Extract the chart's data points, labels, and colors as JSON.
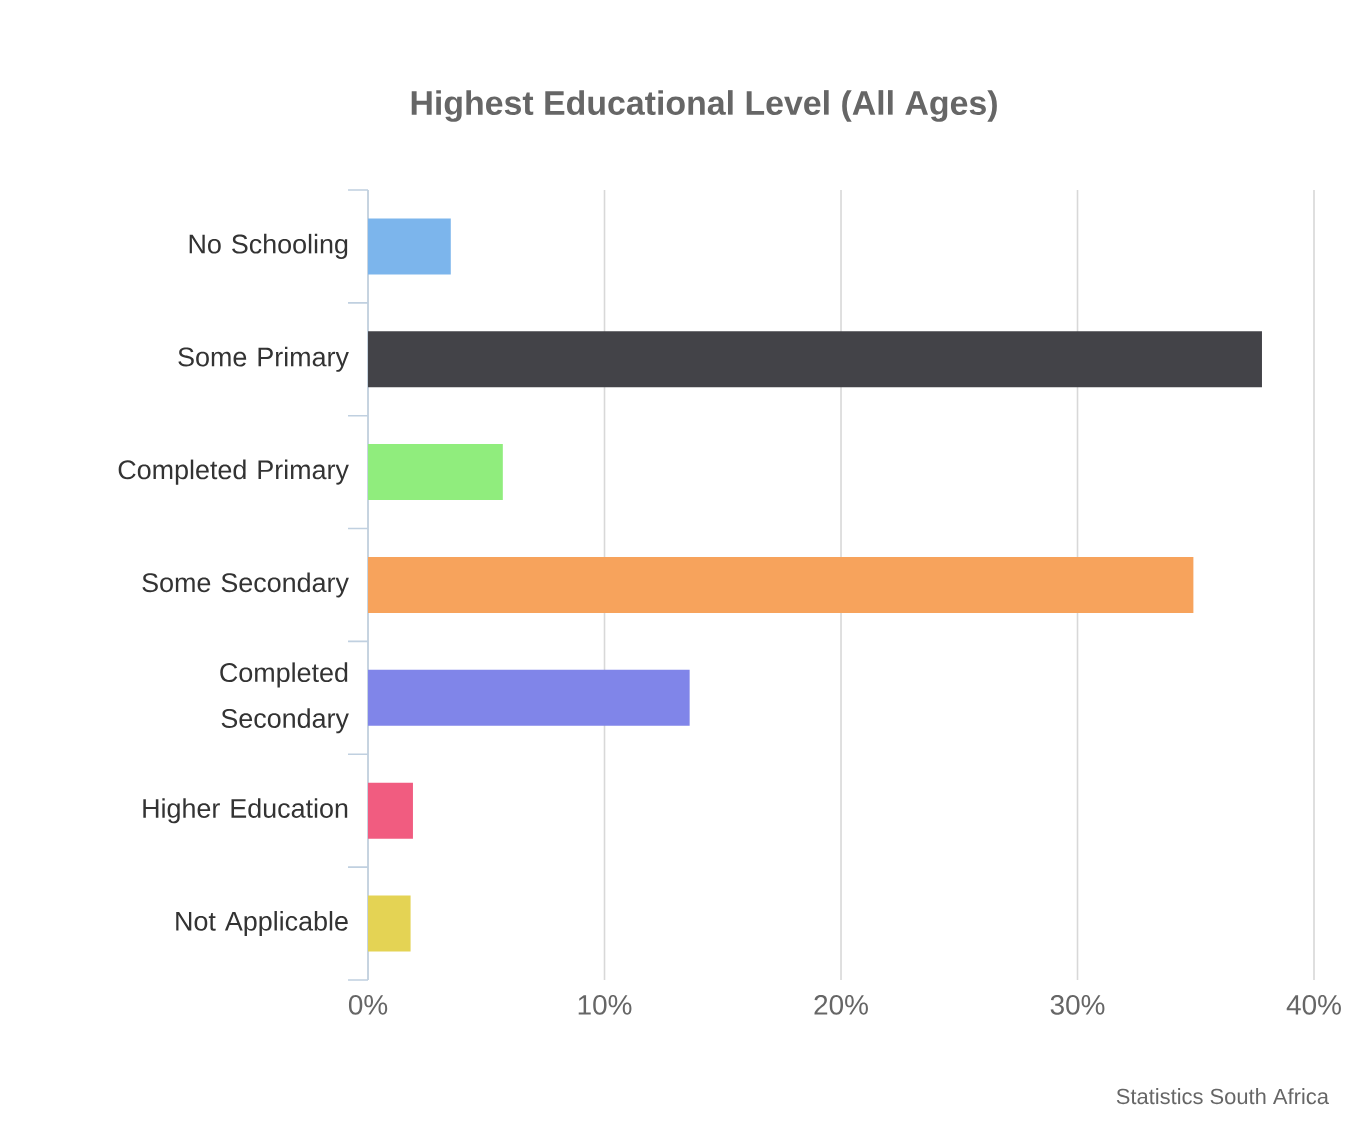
{
  "chart_data": {
    "type": "bar",
    "orientation": "horizontal",
    "title": "Highest Educational Level (All Ages)",
    "categories": [
      "No Schooling",
      "Some Primary",
      "Completed Primary",
      "Some Secondary",
      "Completed Secondary",
      "Higher Education",
      "Not Applicable"
    ],
    "values": [
      3.5,
      37.8,
      5.7,
      34.9,
      13.6,
      1.9,
      1.8
    ],
    "colors": [
      "#7cb5ec",
      "#434348",
      "#90ed7d",
      "#f7a35c",
      "#8085e9",
      "#f15c80",
      "#e4d354"
    ],
    "xlim": [
      0,
      40
    ],
    "xticks": [
      {
        "value": 0,
        "label": "0%"
      },
      {
        "value": 10,
        "label": "10%"
      },
      {
        "value": 20,
        "label": "20%"
      },
      {
        "value": 30,
        "label": "30%"
      },
      {
        "value": 40,
        "label": "40%"
      }
    ],
    "grid": "x",
    "annotations": [
      "Statistics South Africa"
    ]
  }
}
